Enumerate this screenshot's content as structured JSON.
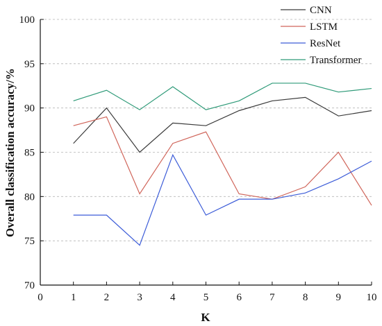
{
  "chart_data": {
    "type": "line",
    "xlabel": "K",
    "ylabel": "Overall classification accuracy/%",
    "x": [
      1,
      2,
      3,
      4,
      5,
      6,
      7,
      8,
      9,
      10
    ],
    "xlim": [
      0,
      10
    ],
    "ylim": [
      70,
      100
    ],
    "x_ticks": [
      "0",
      "1",
      "2",
      "3",
      "4",
      "5",
      "6",
      "7",
      "8",
      "9",
      "10"
    ],
    "y_ticks": [
      "70",
      "75",
      "80",
      "85",
      "90",
      "95",
      "100"
    ],
    "grid": "horizontal-dashed",
    "legend_position": "top-right",
    "series": [
      {
        "name": "CNN",
        "color": "#3a3a3a",
        "values": [
          86.0,
          90.0,
          85.0,
          88.3,
          88.0,
          89.7,
          90.8,
          91.2,
          89.1,
          89.7
        ]
      },
      {
        "name": "LSTM",
        "color": "#d0655a",
        "values": [
          88.0,
          89.0,
          80.3,
          86.0,
          87.3,
          80.3,
          79.7,
          81.1,
          85.0,
          79.0
        ]
      },
      {
        "name": "ResNet",
        "color": "#3c5cd8",
        "values": [
          77.9,
          77.9,
          74.5,
          84.7,
          77.9,
          79.7,
          79.7,
          80.4,
          82.0,
          84.0
        ]
      },
      {
        "name": "Transformer",
        "color": "#2e9a78",
        "values": [
          90.8,
          92.0,
          89.8,
          92.4,
          89.8,
          90.8,
          92.8,
          92.8,
          91.8,
          92.2
        ]
      }
    ]
  }
}
